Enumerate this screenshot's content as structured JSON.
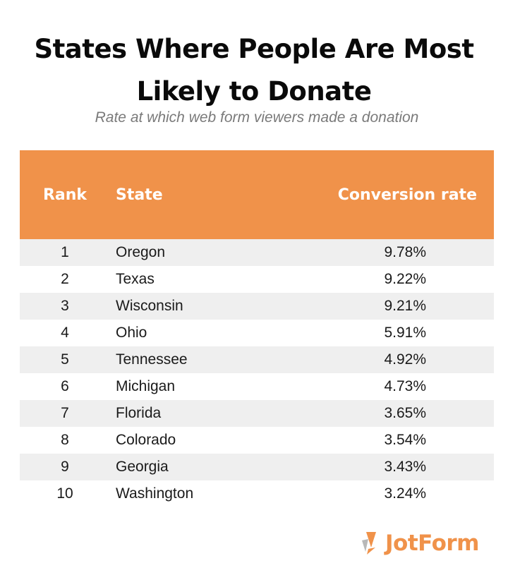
{
  "title": "States Where People Are Most Likely to Donate",
  "subtitle": "Rate at which web form viewers made a donation",
  "brand": {
    "name": "JotForm",
    "accent_color": "#f0924a",
    "logo_icon": "pencil-icon"
  },
  "chart_data": {
    "type": "table",
    "title": "States Where People Are Most Likely to Donate",
    "subtitle": "Rate at which web form viewers made a donation",
    "columns": [
      "Rank",
      "State",
      "Conversion rate"
    ],
    "rows": [
      {
        "rank": "1",
        "state": "Oregon",
        "rate": "9.78%"
      },
      {
        "rank": "2",
        "state": "Texas",
        "rate": "9.22%"
      },
      {
        "rank": "3",
        "state": "Wisconsin",
        "rate": "9.21%"
      },
      {
        "rank": "4",
        "state": "Ohio",
        "rate": "5.91%"
      },
      {
        "rank": "5",
        "state": "Tennessee",
        "rate": "4.92%"
      },
      {
        "rank": "6",
        "state": "Michigan",
        "rate": "4.73%"
      },
      {
        "rank": "7",
        "state": "Florida",
        "rate": "3.65%"
      },
      {
        "rank": "8",
        "state": "Colorado",
        "rate": "3.54%"
      },
      {
        "rank": "9",
        "state": "Georgia",
        "rate": "3.43%"
      },
      {
        "rank": "10",
        "state": "Washington",
        "rate": "3.24%"
      }
    ],
    "header_color": "#f0924a",
    "stripe_color": "#efefef"
  }
}
